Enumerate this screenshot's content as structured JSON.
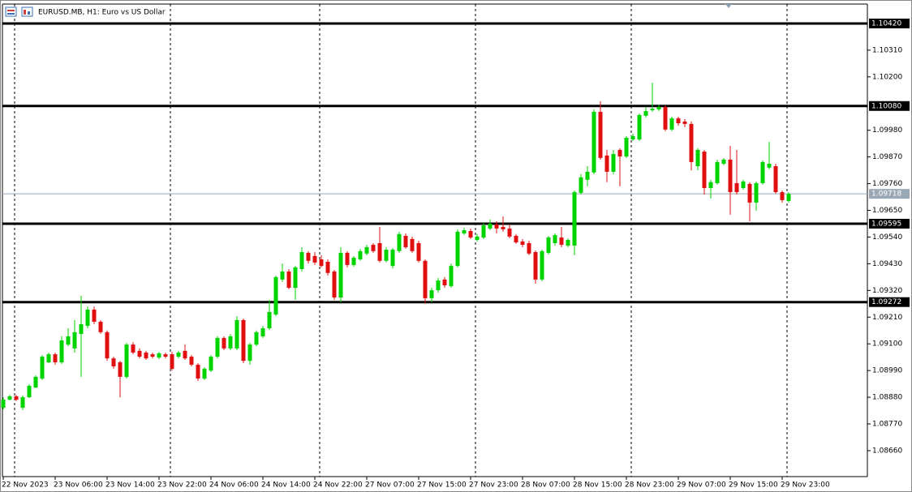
{
  "chart_data": {
    "type": "candlestick",
    "title": "EURUSD.MB, H1:  Euro vs US Dollar",
    "up_color": "#00d400",
    "down_color": "#e01010",
    "ylim": [
      1.08553,
      1.105
    ],
    "yticks": [
      {
        "value": 1.1031,
        "label": "1.10310"
      },
      {
        "value": 1.102,
        "label": "1.10200"
      },
      {
        "value": 1.0998,
        "label": "1.09980"
      },
      {
        "value": 1.0987,
        "label": "1.09870"
      },
      {
        "value": 1.0976,
        "label": "1.09760"
      },
      {
        "value": 1.0965,
        "label": "1.09650"
      },
      {
        "value": 1.0954,
        "label": "1.09540"
      },
      {
        "value": 1.0943,
        "label": "1.09430"
      },
      {
        "value": 1.0932,
        "label": "1.09320"
      },
      {
        "value": 1.0921,
        "label": "1.09210"
      },
      {
        "value": 1.091,
        "label": "1.09100"
      },
      {
        "value": 1.0899,
        "label": "1.08990"
      },
      {
        "value": 1.0888,
        "label": "1.08880"
      },
      {
        "value": 1.0877,
        "label": "1.08770"
      },
      {
        "value": 1.0866,
        "label": "1.08660"
      }
    ],
    "hlines": [
      {
        "value": 1.1042,
        "label": "1.10420"
      },
      {
        "value": 1.1008,
        "label": "1.10080"
      },
      {
        "value": 1.09595,
        "label": "1.09595"
      },
      {
        "value": 1.09272,
        "label": "1.09272"
      }
    ],
    "current_price": {
      "value": 1.09718,
      "label": "1.09718"
    },
    "xticks": [
      {
        "value": 0,
        "label": "22 Nov 2023"
      },
      {
        "value": 8,
        "label": "23 Nov 06:00"
      },
      {
        "value": 16,
        "label": "23 Nov 14:00"
      },
      {
        "value": 24,
        "label": "23 Nov 22:00"
      },
      {
        "value": 32,
        "label": "24 Nov 06:00"
      },
      {
        "value": 40,
        "label": "24 Nov 14:00"
      },
      {
        "value": 48,
        "label": "24 Nov 22:00"
      },
      {
        "value": 56,
        "label": "27 Nov 07:00"
      },
      {
        "value": 64,
        "label": "27 Nov 15:00"
      },
      {
        "value": 72,
        "label": "27 Nov 23:00"
      },
      {
        "value": 80,
        "label": "28 Nov 07:00"
      },
      {
        "value": 88,
        "label": "28 Nov 15:00"
      },
      {
        "value": 96,
        "label": "28 Nov 23:00"
      },
      {
        "value": 104,
        "label": "29 Nov 07:00"
      },
      {
        "value": 112,
        "label": "29 Nov 15:00"
      },
      {
        "value": 120,
        "label": "29 Nov 23:00"
      }
    ],
    "open": [
      1.08837,
      1.0887,
      1.08884,
      1.08837,
      1.0888,
      1.0892,
      1.08957,
      1.09024,
      1.09057,
      1.09024,
      1.09097,
      1.09081,
      1.09141,
      1.09174,
      1.09241,
      1.09191,
      1.09148,
      1.0904,
      1.09024,
      1.08964,
      1.09097,
      1.09071,
      1.09064,
      1.09057,
      1.09044,
      1.09057,
      1.09057,
      1.09047,
      1.09071,
      1.09047,
      1.09014,
      1.08957,
      1.0899,
      1.09047,
      1.09124,
      1.09081,
      1.09081,
      1.09198,
      1.0903,
      1.09097,
      1.09131,
      1.09164,
      1.09221,
      1.09365,
      1.09398,
      1.09331,
      1.09408,
      1.09475,
      1.09462,
      1.09448,
      1.09438,
      1.09398,
      1.09291,
      1.09475,
      1.09425,
      1.09448,
      1.09472,
      1.09508,
      1.09515,
      1.09442,
      1.09421,
      1.09482,
      1.09545,
      1.09532,
      1.09515,
      1.09442,
      1.09288,
      1.09321,
      1.09365,
      1.09338,
      1.09421,
      1.09555,
      1.09565,
      1.09528,
      1.09538,
      1.09575,
      1.09592,
      1.09582,
      1.09575,
      1.09545,
      1.09522,
      1.09515,
      1.09478,
      1.09365,
      1.09475,
      1.09515,
      1.09538,
      1.09505,
      1.09505,
      1.09722,
      1.09776,
      1.09806,
      1.10056,
      1.09876,
      1.09809,
      1.09899,
      1.09872,
      1.09942,
      1.09942,
      1.1004,
      1.10063,
      1.10066,
      1.10076,
      1.09983,
      1.10029,
      1.10016,
      1.10006,
      1.09832,
      1.09892,
      1.09742,
      1.09762,
      1.09842,
      1.09859,
      1.09762,
      1.09742,
      1.09759,
      1.09682,
      1.09762,
      1.09826,
      1.09832,
      1.09725,
      1.09689
    ],
    "high": [
      1.0888,
      1.0889,
      1.0889,
      1.08887,
      1.08934,
      1.0897,
      1.09054,
      1.09064,
      1.09064,
      1.09131,
      1.09164,
      1.09198,
      1.09298,
      1.09254,
      1.09254,
      1.09198,
      1.09155,
      1.09047,
      1.0903,
      1.09104,
      1.09107,
      1.09081,
      1.09071,
      1.09064,
      1.09067,
      1.09064,
      1.09067,
      1.09071,
      1.09097,
      1.09054,
      1.0902,
      1.09004,
      1.09054,
      1.09131,
      1.09131,
      1.09141,
      1.09214,
      1.09204,
      1.09104,
      1.09155,
      1.09174,
      1.09281,
      1.09381,
      1.09431,
      1.09408,
      1.09421,
      1.09498,
      1.09482,
      1.09478,
      1.09465,
      1.09448,
      1.09405,
      1.09498,
      1.09482,
      1.09462,
      1.09492,
      1.09508,
      1.09515,
      1.09582,
      1.09498,
      1.09495,
      1.09562,
      1.09555,
      1.09542,
      1.09525,
      1.09448,
      1.09331,
      1.09371,
      1.09375,
      1.09431,
      1.09572,
      1.09578,
      1.09575,
      1.09552,
      1.09598,
      1.09612,
      1.09605,
      1.09625,
      1.09592,
      1.09552,
      1.09532,
      1.09525,
      1.09485,
      1.09488,
      1.09545,
      1.09555,
      1.09582,
      1.09535,
      1.09732,
      1.09799,
      1.09832,
      1.10066,
      1.101,
      1.09899,
      1.09899,
      1.09906,
      1.09956,
      1.09966,
      1.10049,
      1.10076,
      1.10176,
      1.10086,
      1.10083,
      1.10036,
      1.10036,
      1.10026,
      1.10016,
      1.09906,
      1.09899,
      1.09776,
      1.09859,
      1.09866,
      1.09916,
      1.09899,
      1.09776,
      1.09766,
      1.09769,
      1.09856,
      1.09932,
      1.09842,
      1.09732,
      1.09725
    ],
    "low": [
      1.0883,
      1.08867,
      1.08864,
      1.08827,
      1.08877,
      1.08917,
      1.0895,
      1.0902,
      1.09014,
      1.09017,
      1.0909,
      1.09064,
      1.08964,
      1.09164,
      1.09181,
      1.09141,
      1.0903,
      1.08997,
      1.0888,
      1.08957,
      1.09057,
      1.0904,
      1.09034,
      1.0904,
      1.09037,
      1.0904,
      1.0899,
      1.0904,
      1.09034,
      1.09007,
      1.08947,
      1.0895,
      1.08984,
      1.0904,
      1.09074,
      1.09074,
      1.09074,
      1.0902,
      1.09014,
      1.0909,
      1.09124,
      1.09157,
      1.09214,
      1.09355,
      1.09325,
      1.09281,
      1.09398,
      1.09431,
      1.09425,
      1.09415,
      1.09381,
      1.09281,
      1.09271,
      1.09415,
      1.09418,
      1.09442,
      1.09465,
      1.09475,
      1.09435,
      1.09435,
      1.09411,
      1.09475,
      1.09492,
      1.09475,
      1.09435,
      1.09265,
      1.09271,
      1.09311,
      1.09331,
      1.09331,
      1.09415,
      1.09548,
      1.09532,
      1.09522,
      1.09532,
      1.09568,
      1.09555,
      1.09562,
      1.09535,
      1.09512,
      1.09498,
      1.09465,
      1.09348,
      1.09358,
      1.09468,
      1.09505,
      1.09498,
      1.09498,
      1.09465,
      1.09715,
      1.09749,
      1.09799,
      1.09859,
      1.09766,
      1.09799,
      1.09749,
      1.09866,
      1.09936,
      1.09936,
      1.10033,
      1.10056,
      1.10059,
      1.09976,
      1.09976,
      1.09999,
      1.09993,
      1.09815,
      1.09815,
      1.09715,
      1.09699,
      1.09756,
      1.09836,
      1.09632,
      1.09715,
      1.09735,
      1.09605,
      1.09649,
      1.09756,
      1.09819,
      1.09719,
      1.09682,
      1.09682
    ],
    "close": [
      1.0887,
      1.08884,
      1.0887,
      1.0888,
      1.08927,
      1.08964,
      1.09047,
      1.09057,
      1.09024,
      1.09114,
      1.09131,
      1.09148,
      1.09181,
      1.09241,
      1.09191,
      1.09148,
      1.0904,
      1.09007,
      1.08964,
      1.09097,
      1.09064,
      1.09047,
      1.0904,
      1.09047,
      1.09061,
      1.09047,
      1.08997,
      1.09064,
      1.0904,
      1.09014,
      1.08957,
      1.08997,
      1.09047,
      1.09124,
      1.09081,
      1.09131,
      1.09198,
      1.0903,
      1.09097,
      1.09148,
      1.09164,
      1.09231,
      1.09375,
      1.09398,
      1.09331,
      1.09415,
      1.09478,
      1.09442,
      1.09435,
      1.09421,
      1.09392,
      1.09291,
      1.09475,
      1.09425,
      1.09455,
      1.09482,
      1.09498,
      1.09482,
      1.09442,
      1.09488,
      1.09488,
      1.09552,
      1.09498,
      1.09482,
      1.09442,
      1.09288,
      1.09321,
      1.09361,
      1.09341,
      1.09421,
      1.09562,
      1.09568,
      1.09538,
      1.09542,
      1.09588,
      1.09595,
      1.09575,
      1.09572,
      1.09542,
      1.09518,
      1.09508,
      1.09472,
      1.09365,
      1.09482,
      1.09538,
      1.09548,
      1.09508,
      1.09528,
      1.09725,
      1.09786,
      1.09809,
      1.10056,
      1.09866,
      1.09809,
      1.09882,
      1.09872,
      1.09949,
      1.09956,
      1.10043,
      1.10059,
      1.10069,
      1.10076,
      1.09983,
      1.10029,
      1.10009,
      1.10006,
      1.09849,
      1.09899,
      1.09742,
      1.09766,
      1.09849,
      1.09859,
      1.09725,
      1.09725,
      1.09769,
      1.09682,
      1.09762,
      1.09849,
      1.09842,
      1.09725,
      1.09692,
      1.09718
    ]
  }
}
